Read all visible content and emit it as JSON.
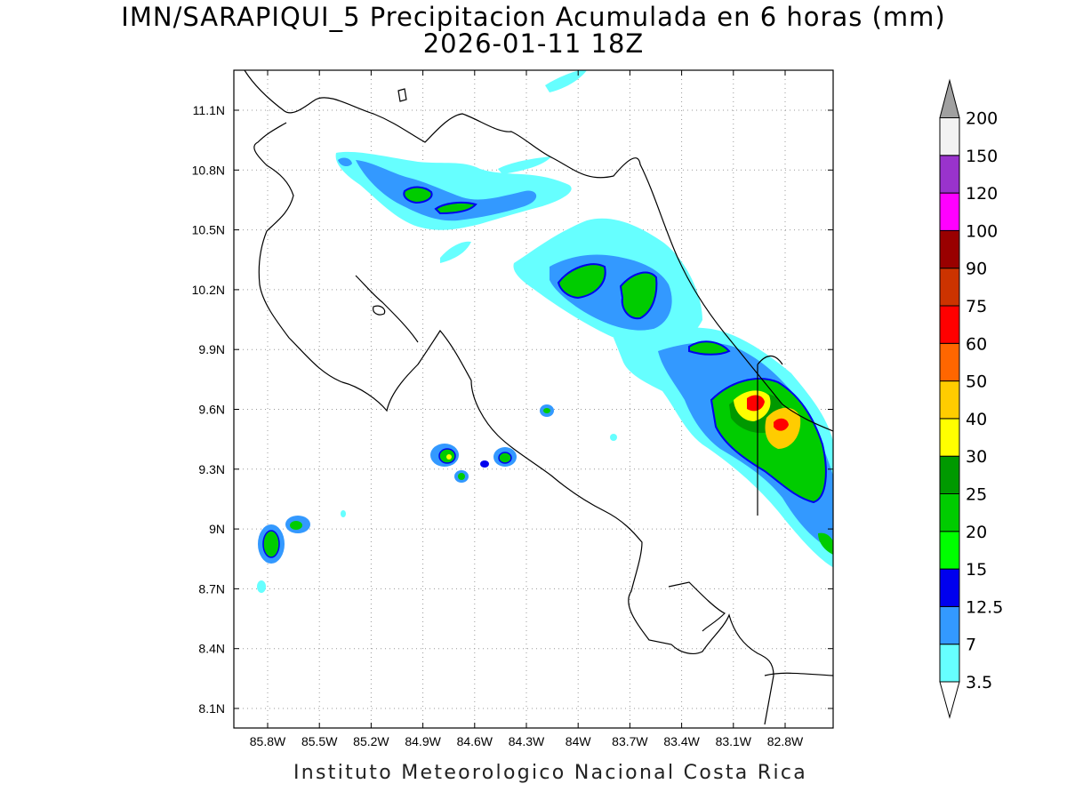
{
  "title": "IMN/SARAPIQUI_5 Precipitacion Acumulada en 6 horas (mm)",
  "subtitle": "2026-01-11 18Z",
  "footer": "Instituto Meteorologico Nacional Costa Rica",
  "map": {
    "lon_range": [
      -86.0,
      -82.6
    ],
    "lat_range": [
      8.0,
      11.3
    ],
    "lon_ticks": [
      "85.8W",
      "85.5W",
      "85.2W",
      "84.9W",
      "84.6W",
      "84.3W",
      "84W",
      "83.7W",
      "83.4W",
      "83.1W",
      "82.8W"
    ],
    "lat_ticks": [
      "11.1N",
      "10.8N",
      "10.5N",
      "10.2N",
      "9.9N",
      "9.6N",
      "9.3N",
      "9N",
      "8.7N",
      "8.4N",
      "8.1N"
    ]
  },
  "colorbar": {
    "levels": [
      "3.5",
      "7",
      "12.5",
      "15",
      "20",
      "25",
      "30",
      "40",
      "50",
      "60",
      "75",
      "90",
      "100",
      "120",
      "150",
      "200"
    ],
    "colors": [
      "#66ffff",
      "#3399ff",
      "#0000ee",
      "#00ff00",
      "#00cc00",
      "#009900",
      "#ffff00",
      "#ffcc00",
      "#ff6600",
      "#ff0000",
      "#cc3300",
      "#990000",
      "#ff00ff",
      "#9933cc",
      "#f2f2f2",
      "#a0a0a0"
    ]
  }
}
